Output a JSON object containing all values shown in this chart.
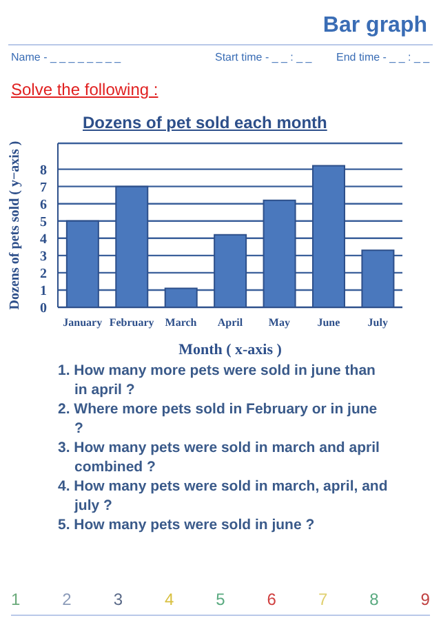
{
  "chart_data": {
    "type": "bar",
    "title": "Dozens of pet sold each month",
    "xlabel": "Month  ( x-axis )",
    "ylabel": "Dozens of pets sold  ( y−axis )",
    "categories": [
      "January",
      "February",
      "March",
      "April",
      "May",
      "June",
      "July"
    ],
    "values": [
      5,
      7,
      1.1,
      4.2,
      6.2,
      8.2,
      3.3
    ],
    "color": "#4a78bd",
    "ylim": [
      0,
      9.5
    ],
    "yticks": [
      0,
      1,
      2,
      3,
      4,
      5,
      6,
      7,
      8
    ],
    "grid": "y",
    "annotations": [
      "Bar graph",
      "Name - _ _ _ _ _ _ _ _",
      "Start time - _ _ : _ _",
      "End time - _ _ : _ _",
      "Solve the following :",
      "1. How many more pets were sold in june than in april ?",
      "2. Where more pets sold in February or in june ?",
      "3. How many pets were sold in march and april combined ?",
      "4. How many pets were sold in march, april, and july ?",
      "5. How many pets were sold in june ?",
      "1",
      "2",
      "3",
      "4",
      "5",
      "6",
      "7",
      "8",
      "9"
    ]
  }
}
